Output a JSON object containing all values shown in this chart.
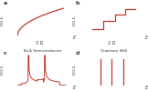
{
  "title_a": "a",
  "title_b": "b",
  "title_c": "c",
  "title_d": "d",
  "label_3d": "3 D",
  "label_2d": "2 D",
  "subtitle_a": "Bulk Semiconductor",
  "subtitle_b": "Quantum Well",
  "ylabel": "D.O.S.",
  "xlabel": "E",
  "line_color": "#c0392b",
  "axis_color": "#444444",
  "bg_color": "#ffffff",
  "text_color": "#333333"
}
